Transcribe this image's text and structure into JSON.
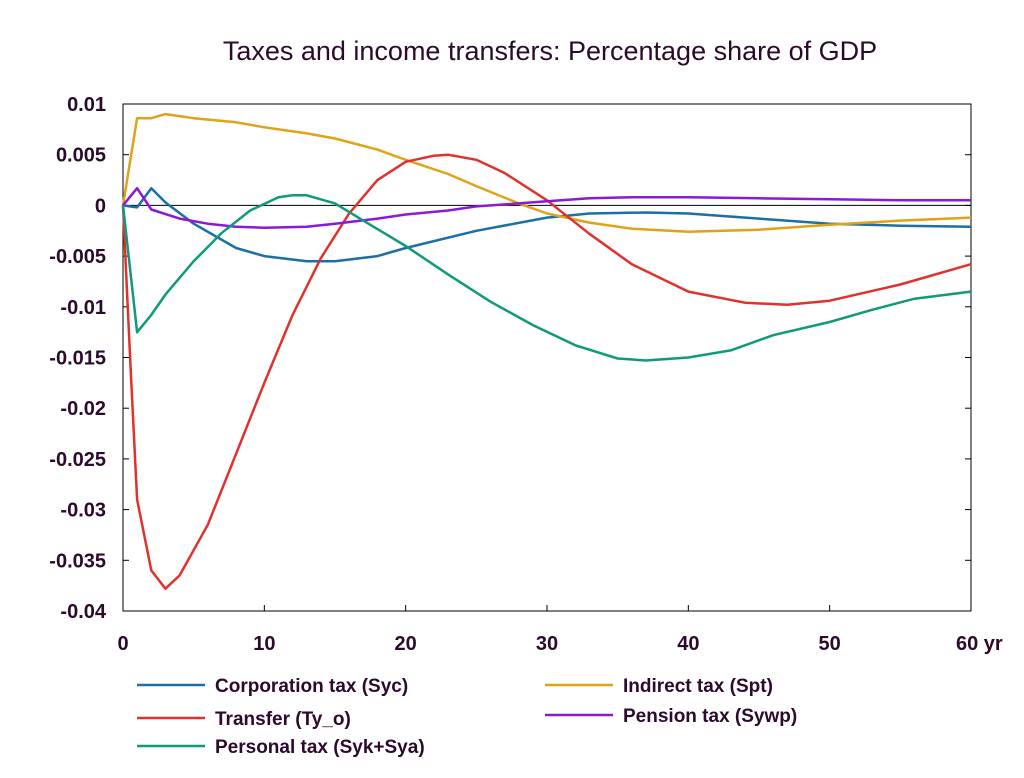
{
  "chart_data": {
    "type": "line",
    "title": "Taxes and income transfers: Percentage share of GDP",
    "xlabel": "",
    "ylabel": "",
    "xlim": [
      0,
      60
    ],
    "ylim": [
      -0.04,
      0.01
    ],
    "x_ticks": [
      "0",
      "10",
      "20",
      "30",
      "40",
      "50",
      "60 yr"
    ],
    "y_ticks": [
      "0.01",
      "0.005",
      "0",
      "-0.005",
      "-0.01",
      "-0.015",
      "-0.02",
      "-0.025",
      "-0.03",
      "-0.035",
      "-0.04"
    ],
    "grid": false,
    "zero_line": true,
    "legend_position": "bottom",
    "series": [
      {
        "name": "Corporation tax (Syc)",
        "color": "#1a6fa6",
        "points": [
          [
            0,
            0
          ],
          [
            1,
            -0.0002
          ],
          [
            2,
            0.0017
          ],
          [
            3,
            0.0003
          ],
          [
            5,
            -0.0018
          ],
          [
            8,
            -0.0042
          ],
          [
            10,
            -0.005
          ],
          [
            13,
            -0.0055
          ],
          [
            15,
            -0.0055
          ],
          [
            18,
            -0.005
          ],
          [
            20,
            -0.0042
          ],
          [
            25,
            -0.0025
          ],
          [
            30,
            -0.0012
          ],
          [
            33,
            -0.0008
          ],
          [
            37,
            -0.0007
          ],
          [
            40,
            -0.0008
          ],
          [
            45,
            -0.0013
          ],
          [
            50,
            -0.0018
          ],
          [
            55,
            -0.002
          ],
          [
            60,
            -0.0021
          ]
        ]
      },
      {
        "name": "Indirect tax (Spt)",
        "color": "#e0a216",
        "points": [
          [
            0,
            0
          ],
          [
            1,
            0.0086
          ],
          [
            2,
            0.0086
          ],
          [
            3,
            0.009
          ],
          [
            5,
            0.0086
          ],
          [
            8,
            0.0082
          ],
          [
            10,
            0.0077
          ],
          [
            13,
            0.0071
          ],
          [
            15,
            0.0066
          ],
          [
            18,
            0.0055
          ],
          [
            20,
            0.0045
          ],
          [
            23,
            0.0031
          ],
          [
            25,
            0.0019
          ],
          [
            28,
            0.0002
          ],
          [
            30,
            -0.0008
          ],
          [
            33,
            -0.0017
          ],
          [
            36,
            -0.0023
          ],
          [
            40,
            -0.0026
          ],
          [
            45,
            -0.0024
          ],
          [
            50,
            -0.0019
          ],
          [
            55,
            -0.0015
          ],
          [
            60,
            -0.0012
          ]
        ]
      },
      {
        "name": "Transfer (Ty_o)",
        "color": "#e1312c",
        "points": [
          [
            0,
            0
          ],
          [
            0.5,
            -0.015
          ],
          [
            1,
            -0.029
          ],
          [
            2,
            -0.036
          ],
          [
            3,
            -0.0378
          ],
          [
            4,
            -0.0365
          ],
          [
            6,
            -0.0315
          ],
          [
            8,
            -0.0245
          ],
          [
            10,
            -0.0175
          ],
          [
            12,
            -0.0108
          ],
          [
            14,
            -0.0052
          ],
          [
            16,
            -0.0008
          ],
          [
            18,
            0.0025
          ],
          [
            20,
            0.0043
          ],
          [
            22,
            0.0049
          ],
          [
            23,
            0.005
          ],
          [
            25,
            0.0045
          ],
          [
            27,
            0.0032
          ],
          [
            30,
            0.0005
          ],
          [
            33,
            -0.0028
          ],
          [
            36,
            -0.0058
          ],
          [
            40,
            -0.0085
          ],
          [
            44,
            -0.0096
          ],
          [
            47,
            -0.0098
          ],
          [
            50,
            -0.0094
          ],
          [
            55,
            -0.0078
          ],
          [
            60,
            -0.0058
          ]
        ]
      },
      {
        "name": "Pension tax (Sywp)",
        "color": "#8a1ad6",
        "points": [
          [
            0,
            0
          ],
          [
            1,
            0.0017
          ],
          [
            2,
            -0.0004
          ],
          [
            4,
            -0.0013
          ],
          [
            6,
            -0.0018
          ],
          [
            8,
            -0.0021
          ],
          [
            10,
            -0.0022
          ],
          [
            13,
            -0.0021
          ],
          [
            15,
            -0.0018
          ],
          [
            18,
            -0.0013
          ],
          [
            20,
            -0.0009
          ],
          [
            23,
            -0.0005
          ],
          [
            25,
            -0.0001
          ],
          [
            28,
            0.0002
          ],
          [
            30,
            0.0004
          ],
          [
            33,
            0.0007
          ],
          [
            36,
            0.0008
          ],
          [
            40,
            0.0008
          ],
          [
            45,
            0.0007
          ],
          [
            50,
            0.0006
          ],
          [
            55,
            0.0005
          ],
          [
            60,
            0.0005
          ]
        ]
      },
      {
        "name": "Personal tax (Syk+Sya)",
        "color": "#0f9a78",
        "points": [
          [
            0,
            0
          ],
          [
            1,
            -0.0125
          ],
          [
            2,
            -0.0108
          ],
          [
            3,
            -0.0088
          ],
          [
            5,
            -0.0055
          ],
          [
            7,
            -0.0027
          ],
          [
            9,
            -0.0005
          ],
          [
            11,
            0.0008
          ],
          [
            12,
            0.001
          ],
          [
            13,
            0.001
          ],
          [
            15,
            0.0002
          ],
          [
            17,
            -0.0015
          ],
          [
            20,
            -0.004
          ],
          [
            23,
            -0.0068
          ],
          [
            26,
            -0.0095
          ],
          [
            29,
            -0.0118
          ],
          [
            32,
            -0.0138
          ],
          [
            35,
            -0.0151
          ],
          [
            37,
            -0.0153
          ],
          [
            40,
            -0.015
          ],
          [
            43,
            -0.0143
          ],
          [
            46,
            -0.0128
          ],
          [
            50,
            -0.0115
          ],
          [
            53,
            -0.0103
          ],
          [
            56,
            -0.0092
          ],
          [
            60,
            -0.0085
          ]
        ]
      }
    ]
  }
}
